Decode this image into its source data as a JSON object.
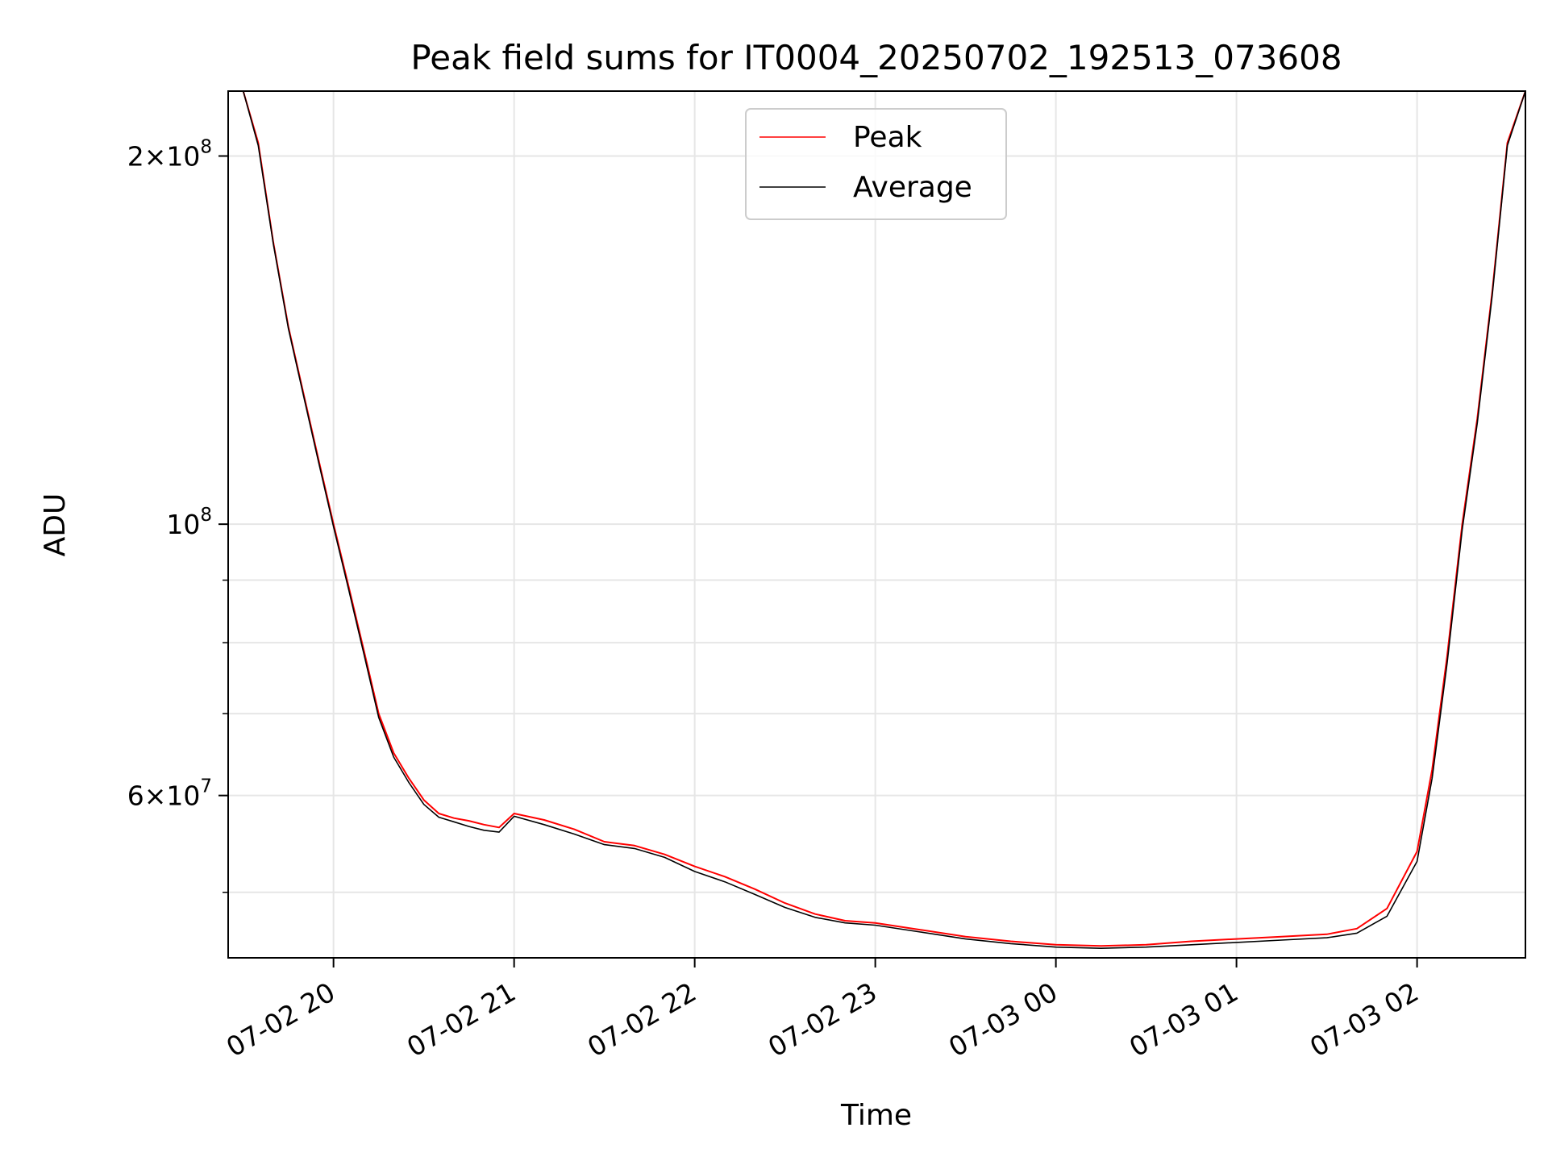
{
  "chart_data": {
    "type": "line",
    "title": "Peak field sums for IT0004_20250702_192513_073608",
    "xlabel": "Time",
    "ylabel": "ADU",
    "x_scale": "time",
    "y_scale": "log",
    "xlim": [
      "2025-07-02 19:25",
      "2025-07-03 02:36"
    ],
    "ylim": [
      44200000,
      226000000
    ],
    "x_ticks": [
      {
        "value": "2025-07-02 20:00",
        "label": "07-02 20"
      },
      {
        "value": "2025-07-02 21:00",
        "label": "07-02 21"
      },
      {
        "value": "2025-07-02 22:00",
        "label": "07-02 22"
      },
      {
        "value": "2025-07-02 23:00",
        "label": "07-02 23"
      },
      {
        "value": "2025-07-03 00:00",
        "label": "07-03 00"
      },
      {
        "value": "2025-07-03 01:00",
        "label": "07-03 01"
      },
      {
        "value": "2025-07-03 02:00",
        "label": "07-03 02"
      }
    ],
    "y_major_ticks": [
      {
        "value": 200000000,
        "mantissa": "2",
        "exponent": "8"
      },
      {
        "value": 100000000,
        "mantissa": "",
        "exponent": "8"
      },
      {
        "value": 60000000,
        "mantissa": "6",
        "exponent": "7"
      }
    ],
    "y_minor_ticks": [
      50000000,
      70000000,
      80000000,
      90000000
    ],
    "grid": true,
    "legend": "upper-center",
    "series": [
      {
        "name": "Peak",
        "color": "#ff0000",
        "x": [
          "2025-07-02 19:25",
          "2025-07-02 19:30",
          "2025-07-02 19:35",
          "2025-07-02 19:40",
          "2025-07-02 19:45",
          "2025-07-02 19:50",
          "2025-07-02 19:55",
          "2025-07-02 20:00",
          "2025-07-02 20:05",
          "2025-07-02 20:10",
          "2025-07-02 20:15",
          "2025-07-02 20:20",
          "2025-07-02 20:25",
          "2025-07-02 20:30",
          "2025-07-02 20:35",
          "2025-07-02 20:40",
          "2025-07-02 20:45",
          "2025-07-02 20:50",
          "2025-07-02 20:55",
          "2025-07-02 21:00",
          "2025-07-02 21:10",
          "2025-07-02 21:20",
          "2025-07-02 21:30",
          "2025-07-02 21:40",
          "2025-07-02 21:50",
          "2025-07-02 22:00",
          "2025-07-02 22:10",
          "2025-07-02 22:20",
          "2025-07-02 22:30",
          "2025-07-02 22:40",
          "2025-07-02 22:50",
          "2025-07-02 23:00",
          "2025-07-02 23:15",
          "2025-07-02 23:30",
          "2025-07-02 23:45",
          "2025-07-03 00:00",
          "2025-07-03 00:15",
          "2025-07-03 00:30",
          "2025-07-03 00:45",
          "2025-07-03 01:00",
          "2025-07-03 01:15",
          "2025-07-03 01:30",
          "2025-07-03 01:40",
          "2025-07-03 01:50",
          "2025-07-03 02:00",
          "2025-07-03 02:05",
          "2025-07-03 02:10",
          "2025-07-03 02:15",
          "2025-07-03 02:20",
          "2025-07-03 02:25",
          "2025-07-03 02:30",
          "2025-07-03 02:36"
        ],
        "values": [
          226000000,
          226000000,
          205000000,
          170000000,
          145000000,
          128000000,
          113000000,
          100000000,
          89000000,
          79000000,
          70000000,
          65000000,
          62000000,
          59500000,
          58000000,
          57500000,
          57200000,
          56800000,
          56500000,
          58000000,
          57300000,
          56300000,
          55000000,
          54600000,
          53700000,
          52500000,
          51500000,
          50300000,
          49000000,
          48000000,
          47400000,
          47200000,
          46600000,
          46000000,
          45600000,
          45300000,
          45200000,
          45300000,
          45600000,
          45800000,
          46000000,
          46200000,
          46700000,
          48500000,
          54000000,
          63000000,
          78000000,
          100000000,
          122000000,
          155000000,
          205000000,
          226000000
        ]
      },
      {
        "name": "Average",
        "color": "#000000",
        "x": [
          "2025-07-02 19:25",
          "2025-07-02 19:30",
          "2025-07-02 19:35",
          "2025-07-02 19:40",
          "2025-07-02 19:45",
          "2025-07-02 19:50",
          "2025-07-02 19:55",
          "2025-07-02 20:00",
          "2025-07-02 20:05",
          "2025-07-02 20:10",
          "2025-07-02 20:15",
          "2025-07-02 20:20",
          "2025-07-02 20:25",
          "2025-07-02 20:30",
          "2025-07-02 20:35",
          "2025-07-02 20:40",
          "2025-07-02 20:45",
          "2025-07-02 20:50",
          "2025-07-02 20:55",
          "2025-07-02 21:00",
          "2025-07-02 21:10",
          "2025-07-02 21:20",
          "2025-07-02 21:30",
          "2025-07-02 21:40",
          "2025-07-02 21:50",
          "2025-07-02 22:00",
          "2025-07-02 22:10",
          "2025-07-02 22:20",
          "2025-07-02 22:30",
          "2025-07-02 22:40",
          "2025-07-02 22:50",
          "2025-07-02 23:00",
          "2025-07-02 23:15",
          "2025-07-02 23:30",
          "2025-07-02 23:45",
          "2025-07-03 00:00",
          "2025-07-03 00:15",
          "2025-07-03 00:30",
          "2025-07-03 00:45",
          "2025-07-03 01:00",
          "2025-07-03 01:15",
          "2025-07-03 01:30",
          "2025-07-03 01:40",
          "2025-07-03 01:50",
          "2025-07-03 02:00",
          "2025-07-03 02:05",
          "2025-07-03 02:10",
          "2025-07-03 02:15",
          "2025-07-03 02:20",
          "2025-07-03 02:25",
          "2025-07-03 02:30",
          "2025-07-03 02:36"
        ],
        "values": [
          226000000,
          226000000,
          204000000,
          169500000,
          144500000,
          127500000,
          112500000,
          99500000,
          88500000,
          78500000,
          69500000,
          64500000,
          61500000,
          59000000,
          57600000,
          57100000,
          56600000,
          56200000,
          56000000,
          57700000,
          56800000,
          55800000,
          54700000,
          54300000,
          53400000,
          52000000,
          51000000,
          49800000,
          48600000,
          47700000,
          47200000,
          47000000,
          46400000,
          45800000,
          45400000,
          45100000,
          45000000,
          45100000,
          45300000,
          45500000,
          45700000,
          45900000,
          46300000,
          47800000,
          53000000,
          62000000,
          77000000,
          99000000,
          121000000,
          154000000,
          204000000,
          226000000
        ]
      }
    ]
  }
}
